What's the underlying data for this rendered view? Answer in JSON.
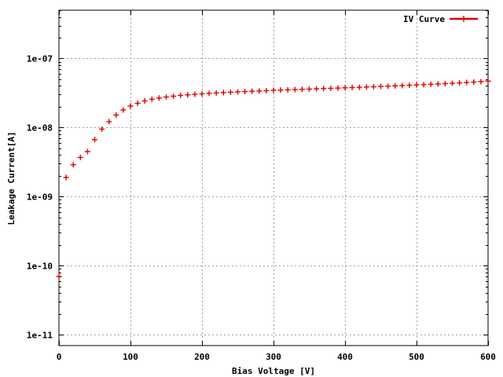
{
  "chart_data": {
    "type": "scatter",
    "title": "",
    "xlabel": "Bias Voltage [V]",
    "ylabel": "Leakage Current[A]",
    "xlim": [
      0,
      600
    ],
    "ylim": [
      7e-12,
      5e-07
    ],
    "yscale": "log",
    "grid": true,
    "legend_position": "top-right",
    "x_ticks": [
      "0",
      "100",
      "200",
      "300",
      "400",
      "500",
      "600"
    ],
    "y_ticks": [
      "1e-11",
      "1e-10",
      "1e-09",
      "1e-08",
      "1e-07"
    ],
    "series": [
      {
        "name": "IV Curve",
        "color": "#e00000",
        "marker": "plus",
        "x": [
          0,
          10,
          20,
          30,
          40,
          50,
          60,
          70,
          80,
          90,
          100,
          110,
          120,
          130,
          140,
          150,
          160,
          170,
          180,
          190,
          200,
          210,
          220,
          230,
          240,
          250,
          260,
          270,
          280,
          290,
          300,
          310,
          320,
          330,
          340,
          350,
          360,
          370,
          380,
          390,
          400,
          410,
          420,
          430,
          440,
          450,
          460,
          470,
          480,
          490,
          500,
          510,
          520,
          530,
          540,
          550,
          560,
          570,
          580,
          590,
          600
        ],
        "y": [
          7e-11,
          1.9e-09,
          2.9e-09,
          3.7e-09,
          4.5e-09,
          6.7e-09,
          9.5e-09,
          1.22e-08,
          1.52e-08,
          1.8e-08,
          2.05e-08,
          2.25e-08,
          2.43e-08,
          2.58e-08,
          2.68e-08,
          2.77e-08,
          2.85e-08,
          2.92e-08,
          2.98e-08,
          3.03e-08,
          3.08e-08,
          3.13e-08,
          3.17e-08,
          3.21e-08,
          3.25e-08,
          3.29e-08,
          3.32e-08,
          3.36e-08,
          3.39e-08,
          3.42e-08,
          3.46e-08,
          3.49e-08,
          3.52e-08,
          3.55e-08,
          3.58e-08,
          3.61e-08,
          3.64e-08,
          3.67e-08,
          3.7e-08,
          3.73e-08,
          3.77e-08,
          3.8e-08,
          3.83e-08,
          3.87e-08,
          3.9e-08,
          3.94e-08,
          3.98e-08,
          4.02e-08,
          4.06e-08,
          4.1e-08,
          4.14e-08,
          4.18e-08,
          4.23e-08,
          4.28e-08,
          4.33e-08,
          4.38e-08,
          4.44e-08,
          4.5e-08,
          4.56e-08,
          4.63e-08,
          4.7e-08
        ]
      }
    ]
  }
}
